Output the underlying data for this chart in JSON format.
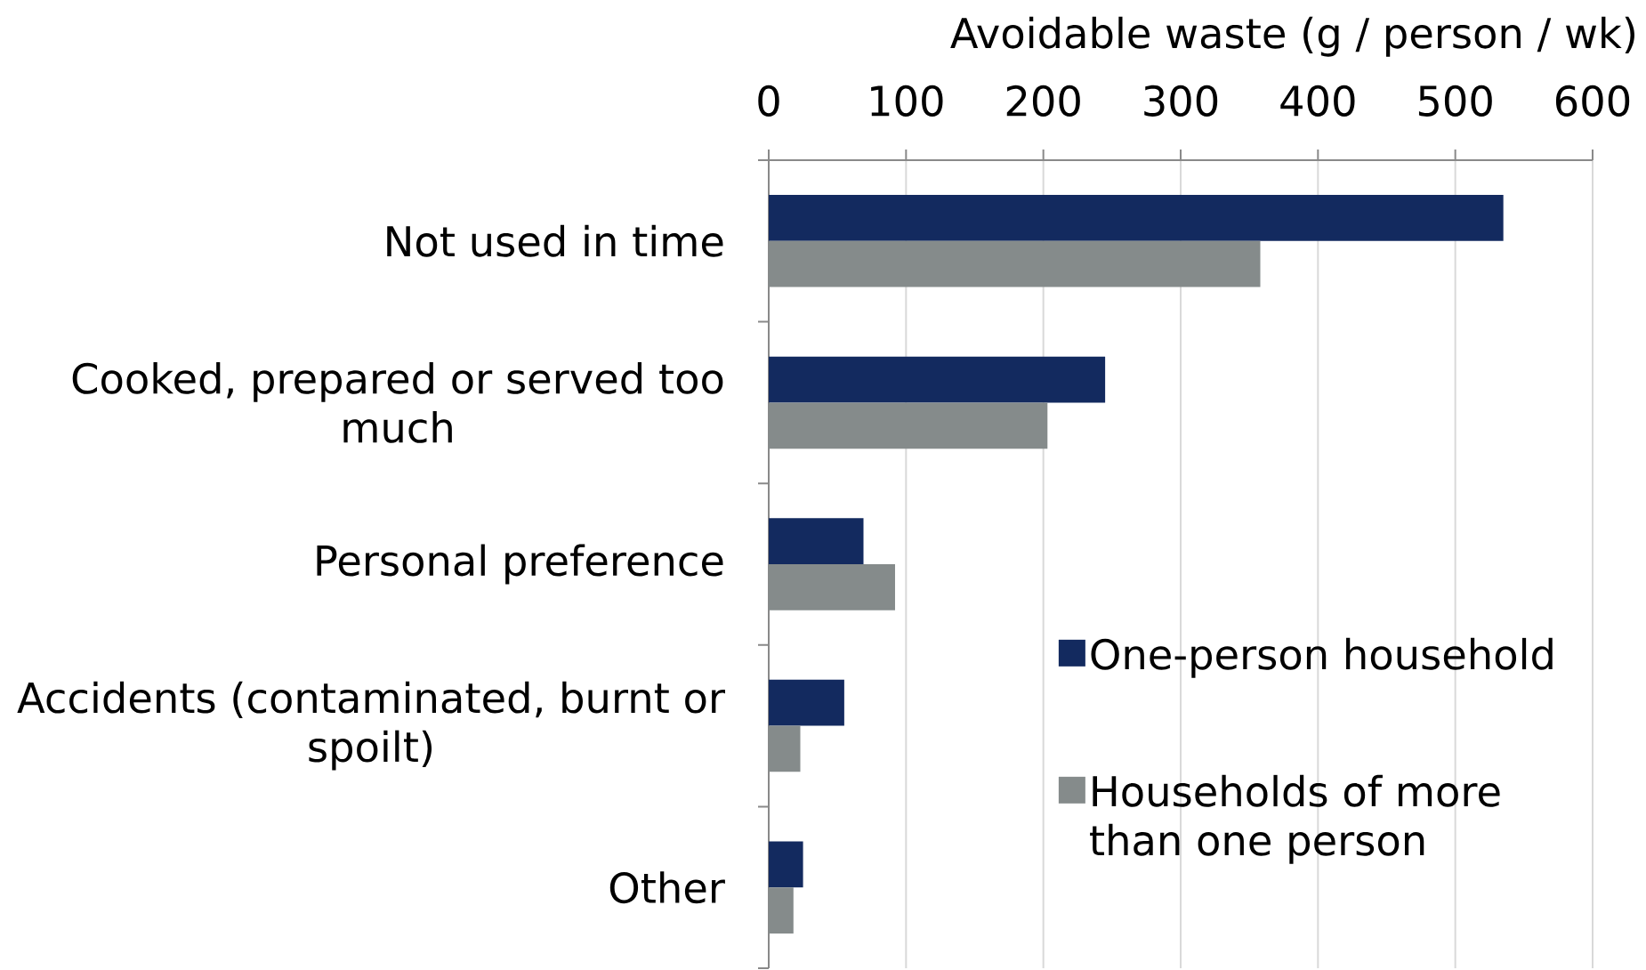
{
  "chart_data": {
    "type": "bar",
    "orientation": "horizontal",
    "xlabel": "Avoidable waste (g / person / wk)",
    "categories": [
      "Not used in time",
      "Cooked, prepared or served too much",
      "Personal preference",
      "Accidents (contaminated, burnt or spoilt)",
      "Other"
    ],
    "series": [
      {
        "name": "One-person household",
        "color": "#132a5f",
        "values": [
          535,
          245,
          69,
          55,
          25
        ]
      },
      {
        "name": "Households of more than one person",
        "color": "#858b8b",
        "values": [
          358,
          203,
          92,
          23,
          18
        ]
      }
    ],
    "xlim": [
      0,
      600
    ],
    "xticks": [
      0,
      100,
      200,
      300,
      400,
      500,
      600
    ],
    "grid": "x",
    "legend": "bottom right"
  }
}
